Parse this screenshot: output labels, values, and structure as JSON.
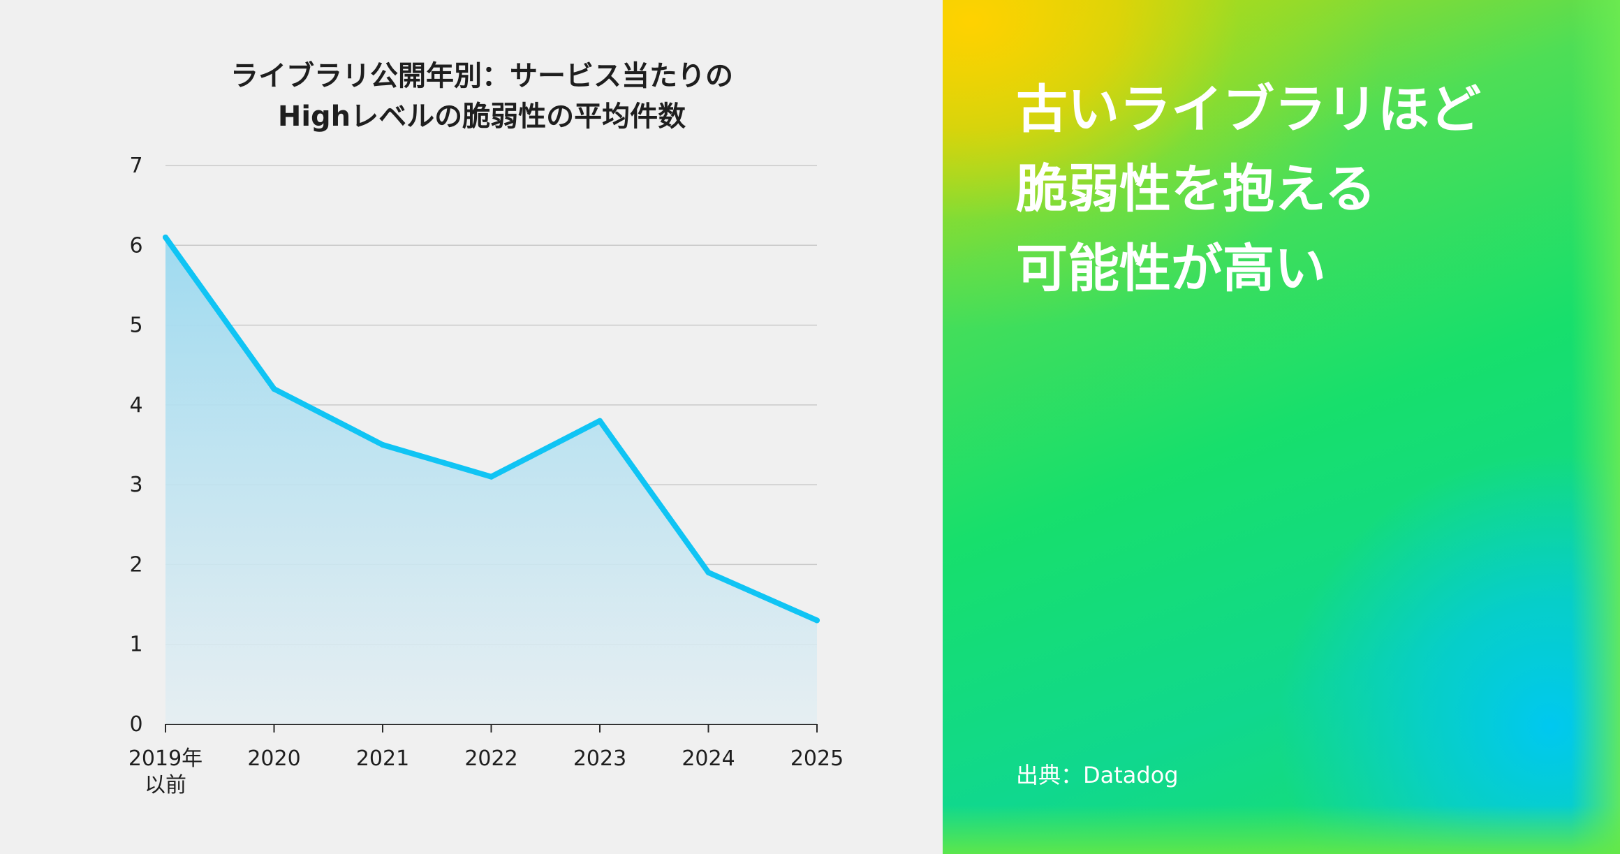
{
  "chart_data": {
    "type": "area",
    "title_lines": [
      "ライブラリ公開年別：サービス当たりの",
      "Highレベルの脆弱性の平均件数"
    ],
    "categories": [
      [
        "2019年",
        "以前"
      ],
      [
        "2020"
      ],
      [
        "2021"
      ],
      [
        "2022"
      ],
      [
        "2023"
      ],
      [
        "2024"
      ],
      [
        "2025"
      ]
    ],
    "values": [
      6.1,
      4.2,
      3.5,
      3.1,
      3.8,
      1.9,
      1.3
    ],
    "ylim": [
      0,
      7
    ],
    "yticks": [
      "0",
      "1",
      "2",
      "3",
      "4",
      "5",
      "6",
      "7"
    ],
    "grid": true,
    "line_color": "#10c4f4",
    "fill_color": "#9ad9f0",
    "legend": "none"
  },
  "panel": {
    "headline_lines": [
      "古いライブラリほど",
      "脆弱性を抱える",
      "可能性が高い"
    ],
    "source": "出典：Datadog",
    "text_color": "#ffffff"
  }
}
